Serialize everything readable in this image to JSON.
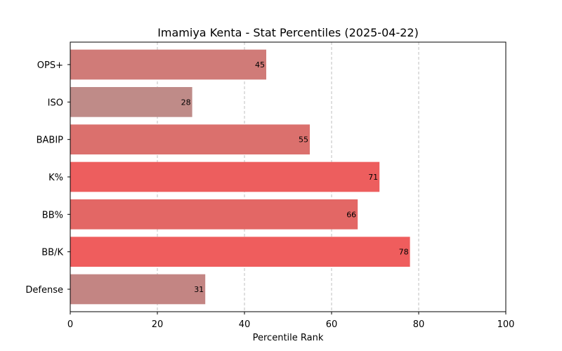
{
  "chart_data": {
    "type": "bar",
    "orientation": "horizontal",
    "title": "Imamiya Kenta - Stat Percentiles (2025-04-22)",
    "xlabel": "Percentile Rank",
    "ylabel": "",
    "xlim": [
      0,
      100
    ],
    "xticks": [
      0,
      20,
      40,
      60,
      80,
      100
    ],
    "grid": "x-dashed",
    "categories": [
      "OPS+",
      "ISO",
      "BABIP",
      "K%",
      "BB%",
      "BB/K",
      "Defense"
    ],
    "values": [
      45,
      28,
      55,
      71,
      66,
      78,
      31
    ],
    "colors": [
      "#d07b78",
      "#bf8b88",
      "#db706d",
      "#ed5e5e",
      "#e36765",
      "#ef5d5d",
      "#c38583"
    ]
  }
}
